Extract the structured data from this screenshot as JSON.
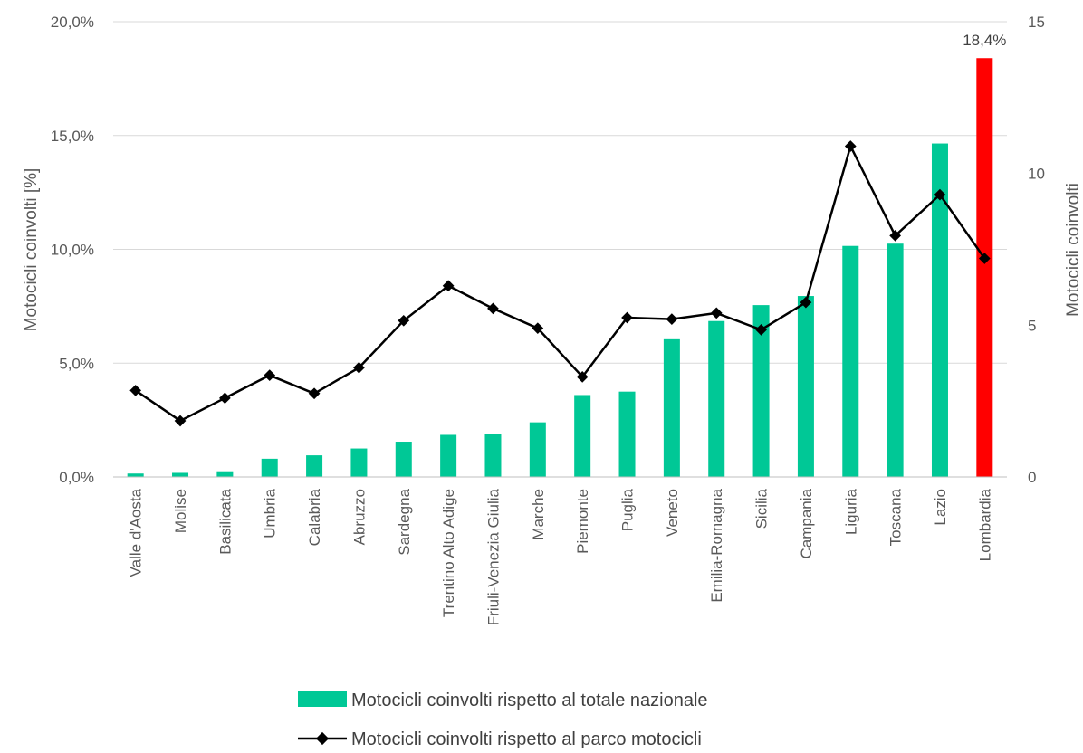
{
  "chart_data": {
    "type": "bar",
    "categories": [
      "Valle d'Aosta",
      "Molise",
      "Basilicata",
      "Umbria",
      "Calabria",
      "Abruzzo",
      "Sardegna",
      "Trentino Alto Adige",
      "Friuli-Venezia Giulia",
      "Marche",
      "Piemonte",
      "Puglia",
      "Veneto",
      "Emilia-Romagna",
      "Sicilia",
      "Campania",
      "Liguria",
      "Toscana",
      "Lazio",
      "Lombardia"
    ],
    "series": [
      {
        "name": "Motocicli coinvolti rispetto al totale nazionale",
        "type": "bar",
        "axis": "left",
        "color": "#00C896",
        "highlight_color": "#FF0000",
        "highlight_index": 19,
        "values": [
          0.15,
          0.18,
          0.25,
          0.8,
          0.95,
          1.25,
          1.55,
          1.85,
          1.9,
          2.4,
          3.6,
          3.75,
          6.05,
          6.85,
          7.55,
          7.95,
          10.15,
          10.25,
          14.65,
          18.4
        ]
      },
      {
        "name": "Motocicli coinvolti rispetto al parco motocicli",
        "type": "line",
        "axis": "right",
        "color": "#000000",
        "marker": "diamond",
        "values": [
          2.85,
          1.85,
          2.6,
          3.35,
          2.75,
          3.6,
          5.15,
          6.3,
          5.55,
          4.9,
          3.3,
          5.25,
          5.2,
          5.4,
          4.85,
          5.75,
          10.9,
          7.95,
          9.3,
          7.2
        ]
      }
    ],
    "ylabel_left": "Motocicli coinvolti [%]",
    "ylabel_right": "Motocicli coinvolti",
    "ylim_left": [
      0,
      20
    ],
    "ylim_right": [
      0,
      15
    ],
    "yticks_left": [
      "0,0%",
      "5,0%",
      "10,0%",
      "15,0%",
      "20,0%"
    ],
    "yticks_right": [
      "0",
      "5",
      "10",
      "15"
    ],
    "data_label": "18,4%",
    "grid": true,
    "legend_position": "bottom"
  }
}
